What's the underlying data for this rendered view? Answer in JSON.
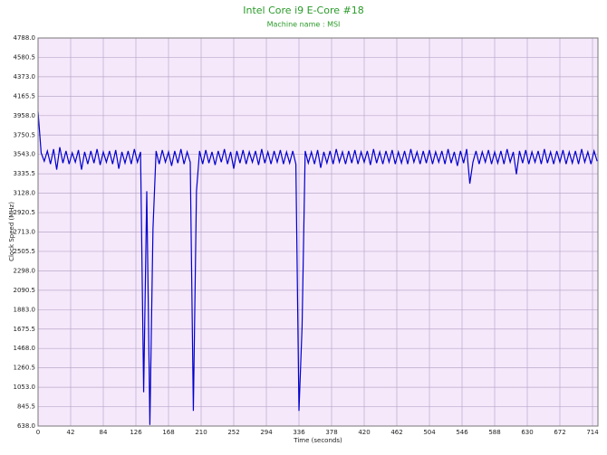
{
  "chart_data": {
    "type": "line",
    "title": "Intel Core i9 E-Core #18",
    "subtitle": "Machine name : MSI",
    "x_label": "Time (seconds)",
    "y_label": "Clock Speed (MHz)",
    "xlim": [
      0,
      721
    ],
    "ylim": [
      638.0,
      4788.0
    ],
    "xticks": [
      0,
      42,
      84,
      126,
      168,
      210,
      252,
      294,
      336,
      378,
      420,
      462,
      504,
      546,
      588,
      630,
      672,
      714
    ],
    "yticks": [
      {
        "value": 638.0,
        "label": "638.0"
      },
      {
        "value": 845.5,
        "label": "845.5"
      },
      {
        "value": 1053.0,
        "label": "1053.0"
      },
      {
        "value": 1260.5,
        "label": "1260.5"
      },
      {
        "value": 1468.0,
        "label": "1468.0"
      },
      {
        "value": 1675.5,
        "label": "1675.5"
      },
      {
        "value": 1883.0,
        "label": "1883.0"
      },
      {
        "value": 2090.5,
        "label": "2090.5"
      },
      {
        "value": 2298.0,
        "label": "2298.0"
      },
      {
        "value": 2505.5,
        "label": "2505.5"
      },
      {
        "value": 2713.0,
        "label": "2713.0"
      },
      {
        "value": 2920.5,
        "label": "2920.5"
      },
      {
        "value": 3128.0,
        "label": "3128.0"
      },
      {
        "value": 3335.5,
        "label": "3335.5"
      },
      {
        "value": 3543.0,
        "label": "3543.0"
      },
      {
        "value": 3750.5,
        "label": "3750.5"
      },
      {
        "value": 3958.0,
        "label": "3958.0"
      },
      {
        "value": 4165.5,
        "label": "4165.5"
      },
      {
        "value": 4373.0,
        "label": "4373.0"
      },
      {
        "value": 4580.5,
        "label": "4580.5"
      },
      {
        "value": 4788.0,
        "label": "4788.0"
      }
    ],
    "grid": true,
    "background": "#f6e8fb",
    "grid_color": "#b9a9c9",
    "x": [
      0,
      4,
      8,
      12,
      16,
      20,
      24,
      28,
      32,
      36,
      40,
      44,
      48,
      52,
      56,
      60,
      64,
      68,
      72,
      76,
      80,
      84,
      88,
      92,
      96,
      100,
      104,
      108,
      112,
      116,
      120,
      124,
      128,
      132,
      136,
      140,
      144,
      148,
      152,
      156,
      160,
      164,
      168,
      172,
      176,
      180,
      184,
      188,
      192,
      196,
      200,
      204,
      208,
      212,
      216,
      220,
      224,
      228,
      232,
      236,
      240,
      244,
      248,
      252,
      256,
      260,
      264,
      268,
      272,
      276,
      280,
      284,
      288,
      292,
      296,
      300,
      304,
      308,
      312,
      316,
      320,
      324,
      328,
      332,
      336,
      340,
      344,
      348,
      352,
      356,
      360,
      364,
      368,
      372,
      376,
      380,
      384,
      388,
      392,
      396,
      400,
      404,
      408,
      412,
      416,
      420,
      424,
      428,
      432,
      436,
      440,
      444,
      448,
      452,
      456,
      460,
      464,
      468,
      472,
      476,
      480,
      484,
      488,
      492,
      496,
      500,
      504,
      508,
      512,
      516,
      520,
      524,
      528,
      532,
      536,
      540,
      544,
      548,
      552,
      556,
      560,
      564,
      568,
      572,
      576,
      580,
      584,
      588,
      592,
      596,
      600,
      604,
      608,
      612,
      616,
      620,
      624,
      628,
      632,
      636,
      640,
      644,
      648,
      652,
      656,
      660,
      664,
      668,
      672,
      676,
      680,
      684,
      688,
      692,
      696,
      700,
      704,
      708,
      712,
      716,
      720
    ],
    "series": [
      {
        "color": "#0000cc",
        "values": [
          4000,
          3560,
          3470,
          3580,
          3440,
          3600,
          3380,
          3620,
          3450,
          3580,
          3440,
          3560,
          3460,
          3590,
          3380,
          3570,
          3440,
          3580,
          3450,
          3600,
          3430,
          3570,
          3460,
          3580,
          3440,
          3590,
          3390,
          3570,
          3450,
          3580,
          3440,
          3600,
          3460,
          3570,
          1000,
          3150,
          650,
          2750,
          3580,
          3440,
          3590,
          3460,
          3570,
          3420,
          3580,
          3450,
          3600,
          3440,
          3570,
          3460,
          800,
          3150,
          3580,
          3440,
          3590,
          3450,
          3570,
          3430,
          3580,
          3460,
          3600,
          3440,
          3570,
          3390,
          3580,
          3450,
          3590,
          3440,
          3570,
          3460,
          3580,
          3430,
          3600,
          3450,
          3570,
          3440,
          3580,
          3460,
          3590,
          3440,
          3570,
          3450,
          3580,
          3440,
          800,
          1700,
          3580,
          3450,
          3570,
          3440,
          3590,
          3400,
          3570,
          3450,
          3580,
          3440,
          3600,
          3460,
          3570,
          3440,
          3580,
          3450,
          3590,
          3440,
          3570,
          3460,
          3580,
          3430,
          3600,
          3450,
          3570,
          3440,
          3580,
          3460,
          3590,
          3440,
          3570,
          3450,
          3580,
          3440,
          3600,
          3460,
          3570,
          3440,
          3580,
          3450,
          3590,
          3440,
          3570,
          3460,
          3580,
          3440,
          3600,
          3450,
          3570,
          3420,
          3580,
          3450,
          3600,
          3230,
          3460,
          3580,
          3440,
          3570,
          3460,
          3590,
          3440,
          3570,
          3450,
          3580,
          3440,
          3600,
          3460,
          3570,
          3330,
          3580,
          3450,
          3590,
          3440,
          3570,
          3460,
          3580,
          3440,
          3600,
          3450,
          3570,
          3440,
          3580,
          3460,
          3590,
          3440,
          3570,
          3450,
          3580,
          3440,
          3600,
          3460,
          3570,
          3440,
          3580,
          3470
        ]
      }
    ]
  }
}
